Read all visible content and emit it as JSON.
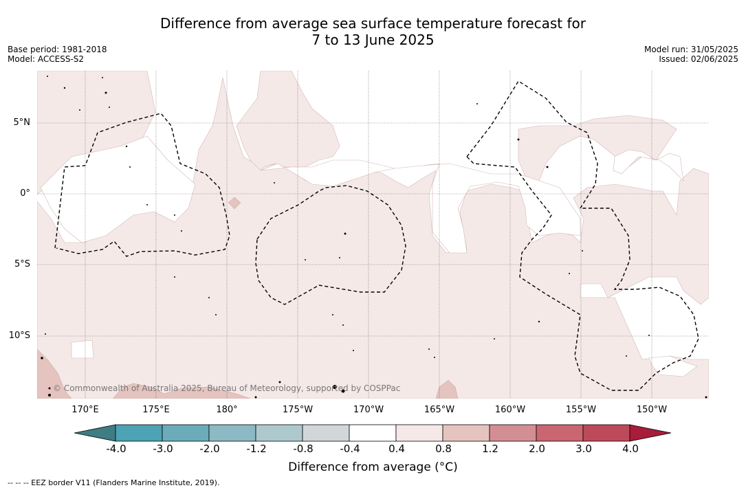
{
  "title": {
    "line1": "Difference from average sea surface temperature forecast for",
    "line2": "7 to 13 June 2025"
  },
  "meta": {
    "base_period": "Base period: 1981-2018",
    "model": "Model: ACCESS-S2",
    "model_run": "Model run: 31/05/2025",
    "issued": "Issued: 02/06/2025"
  },
  "map": {
    "lat_labels": [
      "5°N",
      "0°",
      "5°S",
      "10°S"
    ],
    "lon_labels": [
      "170°E",
      "175°E",
      "180°",
      "175°W",
      "170°W",
      "165°W",
      "160°W",
      "155°W",
      "150°W"
    ],
    "copyright": "© Commonwealth of Australia 2025, Bureau of Meteorology, supported by COSPPac",
    "colors": {
      "anomaly_0_4_to_0_8": "#f5e9e8",
      "anomaly_0_8_to_1_2": "#e5c3bf",
      "outline": "#d0b8b6",
      "eez_border": "#000000"
    }
  },
  "colorbar": {
    "label": "Difference from average (°C)",
    "ticks": [
      "-4.0",
      "-3.0",
      "-2.0",
      "-1.2",
      "-0.8",
      "-0.4",
      "0.4",
      "0.8",
      "1.2",
      "2.0",
      "3.0",
      "4.0"
    ],
    "colors": [
      "#3f7d84",
      "#4ba3b3",
      "#6aacba",
      "#8cb9c3",
      "#adc9cd",
      "#d1d7d8",
      "#ffffff",
      "#f5e9e8",
      "#e5c3bf",
      "#d38e94",
      "#c96670",
      "#bd4a58",
      "#a81d3a"
    ]
  },
  "legend_note": "--  --  -- EEZ border V11 (Flanders Marine Institute, 2019)."
}
